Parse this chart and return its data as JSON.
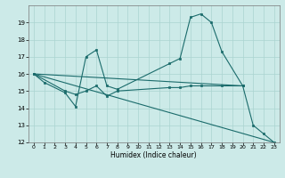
{
  "xlabel": "Humidex (Indice chaleur)",
  "background_color": "#cceae8",
  "line_color": "#1a6b6b",
  "grid_color": "#aad4d0",
  "xlim": [
    -0.5,
    23.5
  ],
  "ylim": [
    12,
    20
  ],
  "yticks": [
    12,
    13,
    14,
    15,
    16,
    17,
    18,
    19
  ],
  "xticks": [
    0,
    1,
    2,
    3,
    4,
    5,
    6,
    7,
    8,
    9,
    10,
    11,
    12,
    13,
    14,
    15,
    16,
    17,
    18,
    19,
    20,
    21,
    22,
    23
  ],
  "line1_x": [
    0,
    1,
    3,
    4,
    5,
    6,
    7,
    8,
    13,
    14,
    15,
    16,
    17,
    18,
    20,
    21,
    22,
    23
  ],
  "line1_y": [
    16.0,
    15.5,
    14.9,
    14.1,
    17.0,
    17.4,
    15.3,
    15.1,
    16.6,
    16.9,
    19.3,
    19.5,
    19.0,
    17.3,
    15.3,
    13.0,
    12.5,
    12.0
  ],
  "line2_x": [
    0,
    3,
    4,
    5,
    6,
    7,
    8,
    13,
    14,
    15,
    16,
    18,
    20
  ],
  "line2_y": [
    16.0,
    15.0,
    14.8,
    15.0,
    15.3,
    14.7,
    15.0,
    15.2,
    15.2,
    15.3,
    15.3,
    15.3,
    15.3
  ],
  "line3_x": [
    0,
    23
  ],
  "line3_y": [
    16.0,
    12.0
  ],
  "line4_x": [
    0,
    20
  ],
  "line4_y": [
    16.0,
    15.3
  ]
}
